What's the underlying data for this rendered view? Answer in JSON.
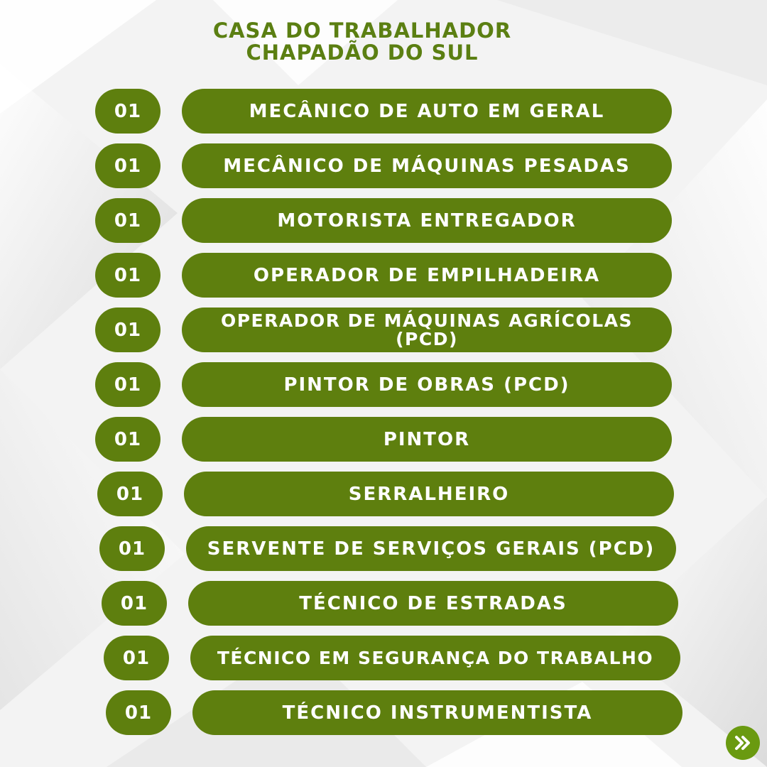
{
  "header": {
    "line1": "CASA DO TRABALHADOR",
    "line2": "CHAPADÃO DO SUL"
  },
  "jobs": [
    {
      "qty": "01",
      "title": "MECÂNICO DE AUTO EM GERAL"
    },
    {
      "qty": "01",
      "title": "MECÂNICO DE MÁQUINAS PESADAS"
    },
    {
      "qty": "01",
      "title": "MOTORISTA ENTREGADOR"
    },
    {
      "qty": "01",
      "title": "OPERADOR DE EMPILHADEIRA"
    },
    {
      "qty": "01",
      "title": "OPERADOR DE MÁQUINAS AGRÍCOLAS (PCD)"
    },
    {
      "qty": "01",
      "title": "PINTOR DE OBRAS (PCD)"
    },
    {
      "qty": "01",
      "title": "PINTOR"
    },
    {
      "qty": "01",
      "title": "SERRALHEIRO"
    },
    {
      "qty": "01",
      "title": "SERVENTE DE SERVIÇOS GERAIS (PCD)"
    },
    {
      "qty": "01",
      "title": "TÉCNICO DE ESTRADAS"
    },
    {
      "qty": "01",
      "title": "TÉCNICO EM SEGURANÇA DO TRABALHO"
    },
    {
      "qty": "01",
      "title": "TÉCNICO INSTRUMENTISTA"
    }
  ],
  "colors": {
    "brand_green": "#5e7f0e",
    "title_green": "#5b7f12",
    "next_button": "#6a9a10"
  },
  "icons": {
    "next": "double-chevron-right-icon"
  }
}
